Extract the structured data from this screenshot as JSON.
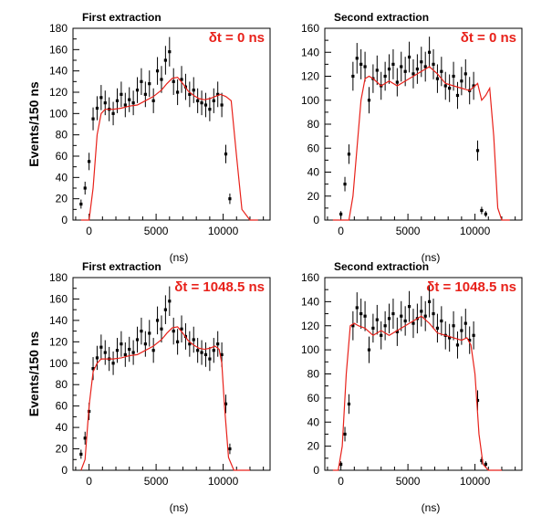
{
  "figure": {
    "ylabel": "Events/150 ns",
    "colors": {
      "data": "#000000",
      "model": "#e8211a",
      "axis": "#000000"
    }
  },
  "chart_data": [
    {
      "type": "line",
      "title": "First extraction",
      "annotation": "δt = 0 ns",
      "xlabel": "(ns)",
      "ylabel": "Events/150 ns",
      "xlim": [
        -1200,
        13500
      ],
      "ylim": [
        0,
        180
      ],
      "xticks": [
        0,
        5000,
        10000
      ],
      "yticks": [
        0,
        20,
        40,
        60,
        80,
        100,
        120,
        140,
        160,
        180
      ],
      "grid": false,
      "series": [
        {
          "role": "data",
          "style": "points with error bars",
          "x": [
            -600,
            -300,
            0,
            300,
            600,
            900,
            1200,
            1500,
            1800,
            2100,
            2400,
            2700,
            3000,
            3300,
            3600,
            3900,
            4200,
            4500,
            4800,
            5100,
            5400,
            5700,
            6000,
            6300,
            6600,
            6900,
            7200,
            7500,
            7800,
            8100,
            8400,
            8700,
            9000,
            9300,
            9600,
            9900,
            10200,
            10500
          ],
          "y": [
            15,
            30,
            55,
            95,
            105,
            115,
            110,
            104,
            100,
            112,
            118,
            108,
            113,
            110,
            122,
            130,
            118,
            128,
            112,
            140,
            132,
            150,
            158,
            130,
            120,
            132,
            125,
            118,
            122,
            112,
            110,
            108,
            104,
            112,
            118,
            108,
            62,
            20
          ]
        },
        {
          "role": "model",
          "style": "line",
          "x": [
            -600,
            0,
            300,
            600,
            900,
            1200,
            1800,
            2400,
            3000,
            3600,
            4200,
            4800,
            5400,
            5800,
            6200,
            6600,
            7000,
            7400,
            7800,
            8200,
            8600,
            9000,
            9400,
            9800,
            10200,
            10600,
            11000,
            11400,
            12000,
            12600
          ],
          "y": [
            0,
            0,
            30,
            80,
            100,
            104,
            104,
            105,
            107,
            108,
            112,
            116,
            122,
            128,
            133,
            134,
            128,
            121,
            117,
            114,
            113,
            114,
            116,
            118,
            116,
            112,
            60,
            10,
            0,
            0
          ]
        }
      ]
    },
    {
      "type": "line",
      "title": "Second extraction",
      "annotation": "δt = 0 ns",
      "xlabel": "(ns)",
      "ylabel": "",
      "xlim": [
        -1200,
        13500
      ],
      "ylim": [
        0,
        160
      ],
      "xticks": [
        0,
        5000,
        10000
      ],
      "yticks": [
        0,
        20,
        40,
        60,
        80,
        100,
        120,
        140,
        160
      ],
      "grid": false,
      "series": [
        {
          "role": "data",
          "style": "points with error bars",
          "x": [
            0,
            300,
            600,
            900,
            1200,
            1500,
            1800,
            2100,
            2400,
            2700,
            3000,
            3300,
            3600,
            3900,
            4200,
            4500,
            4800,
            5100,
            5400,
            5700,
            6000,
            6300,
            6600,
            6900,
            7200,
            7500,
            7800,
            8100,
            8400,
            8700,
            9000,
            9300,
            9600,
            9900,
            10200,
            10500,
            10800
          ],
          "y": [
            5,
            30,
            55,
            120,
            135,
            130,
            128,
            100,
            118,
            125,
            112,
            120,
            126,
            130,
            115,
            128,
            124,
            136,
            122,
            126,
            132,
            128,
            140,
            130,
            118,
            124,
            112,
            110,
            120,
            104,
            116,
            122,
            108,
            112,
            58,
            8,
            5
          ]
        },
        {
          "role": "model",
          "style": "line",
          "x": [
            -600,
            600,
            900,
            1200,
            1500,
            1800,
            2100,
            2400,
            3000,
            3600,
            4200,
            4800,
            5400,
            6000,
            6600,
            7200,
            7800,
            8400,
            9000,
            9600,
            10200,
            10500,
            10800,
            11100,
            11400,
            11700,
            12000,
            12600
          ],
          "y": [
            0,
            0,
            20,
            60,
            100,
            118,
            120,
            118,
            112,
            116,
            112,
            116,
            120,
            124,
            128,
            122,
            114,
            112,
            110,
            108,
            114,
            100,
            104,
            110,
            70,
            10,
            0,
            0
          ]
        }
      ]
    },
    {
      "type": "line",
      "title": "First extraction",
      "annotation": "δt = 1048.5 ns",
      "xlabel": "(ns)",
      "ylabel": "Events/150 ns",
      "xlim": [
        -1200,
        13500
      ],
      "ylim": [
        0,
        180
      ],
      "xticks": [
        0,
        5000,
        10000
      ],
      "yticks": [
        0,
        20,
        40,
        60,
        80,
        100,
        120,
        140,
        160,
        180
      ],
      "grid": false,
      "series": [
        {
          "role": "data",
          "style": "points with error bars",
          "x": [
            -600,
            -300,
            0,
            300,
            600,
            900,
            1200,
            1500,
            1800,
            2100,
            2400,
            2700,
            3000,
            3300,
            3600,
            3900,
            4200,
            4500,
            4800,
            5100,
            5400,
            5700,
            6000,
            6300,
            6600,
            6900,
            7200,
            7500,
            7800,
            8100,
            8400,
            8700,
            9000,
            9300,
            9600,
            9900,
            10200,
            10500
          ],
          "y": [
            15,
            30,
            55,
            95,
            105,
            115,
            110,
            104,
            100,
            112,
            118,
            108,
            113,
            110,
            122,
            130,
            118,
            128,
            112,
            140,
            132,
            150,
            158,
            130,
            120,
            132,
            125,
            118,
            122,
            112,
            110,
            108,
            104,
            112,
            118,
            108,
            62,
            20
          ]
        },
        {
          "role": "model",
          "style": "line",
          "x": [
            -600,
            -300,
            0,
            300,
            600,
            900,
            1200,
            1800,
            2400,
            3000,
            3600,
            4200,
            4800,
            5400,
            5800,
            6200,
            6600,
            7000,
            7400,
            7800,
            8200,
            8600,
            9000,
            9400,
            9700,
            9900,
            10100,
            10400,
            10800,
            12000
          ],
          "y": [
            0,
            10,
            60,
            92,
            100,
            104,
            104,
            104,
            105,
            107,
            108,
            112,
            116,
            122,
            128,
            133,
            134,
            128,
            121,
            117,
            114,
            113,
            114,
            116,
            113,
            100,
            60,
            12,
            0,
            0
          ]
        }
      ]
    },
    {
      "type": "line",
      "title": "Second extraction",
      "annotation": "δt = 1048.5 ns",
      "xlabel": "(ns)",
      "ylabel": "",
      "xlim": [
        -1200,
        13500
      ],
      "ylim": [
        0,
        160
      ],
      "xticks": [
        0,
        5000,
        10000
      ],
      "yticks": [
        0,
        20,
        40,
        60,
        80,
        100,
        120,
        140,
        160
      ],
      "grid": false,
      "series": [
        {
          "role": "data",
          "style": "points with error bars",
          "x": [
            0,
            300,
            600,
            900,
            1200,
            1500,
            1800,
            2100,
            2400,
            2700,
            3000,
            3300,
            3600,
            3900,
            4200,
            4500,
            4800,
            5100,
            5400,
            5700,
            6000,
            6300,
            6600,
            6900,
            7200,
            7500,
            7800,
            8100,
            8400,
            8700,
            9000,
            9300,
            9600,
            9900,
            10200,
            10500,
            10800
          ],
          "y": [
            5,
            30,
            55,
            120,
            135,
            130,
            128,
            100,
            118,
            125,
            112,
            120,
            126,
            130,
            115,
            128,
            124,
            136,
            122,
            126,
            132,
            128,
            140,
            130,
            118,
            124,
            112,
            110,
            120,
            104,
            116,
            122,
            108,
            112,
            58,
            8,
            5
          ]
        },
        {
          "role": "model",
          "style": "line",
          "x": [
            -600,
            -200,
            100,
            400,
            700,
            1000,
            1300,
            1800,
            2400,
            3000,
            3600,
            4200,
            4800,
            5400,
            6000,
            6600,
            7200,
            7800,
            8400,
            9000,
            9400,
            9700,
            10000,
            10300,
            10600,
            11000,
            12000
          ],
          "y": [
            0,
            0,
            20,
            80,
            120,
            122,
            120,
            118,
            112,
            116,
            112,
            116,
            120,
            124,
            128,
            122,
            114,
            112,
            110,
            108,
            110,
            104,
            80,
            30,
            5,
            0,
            0
          ]
        }
      ]
    }
  ]
}
